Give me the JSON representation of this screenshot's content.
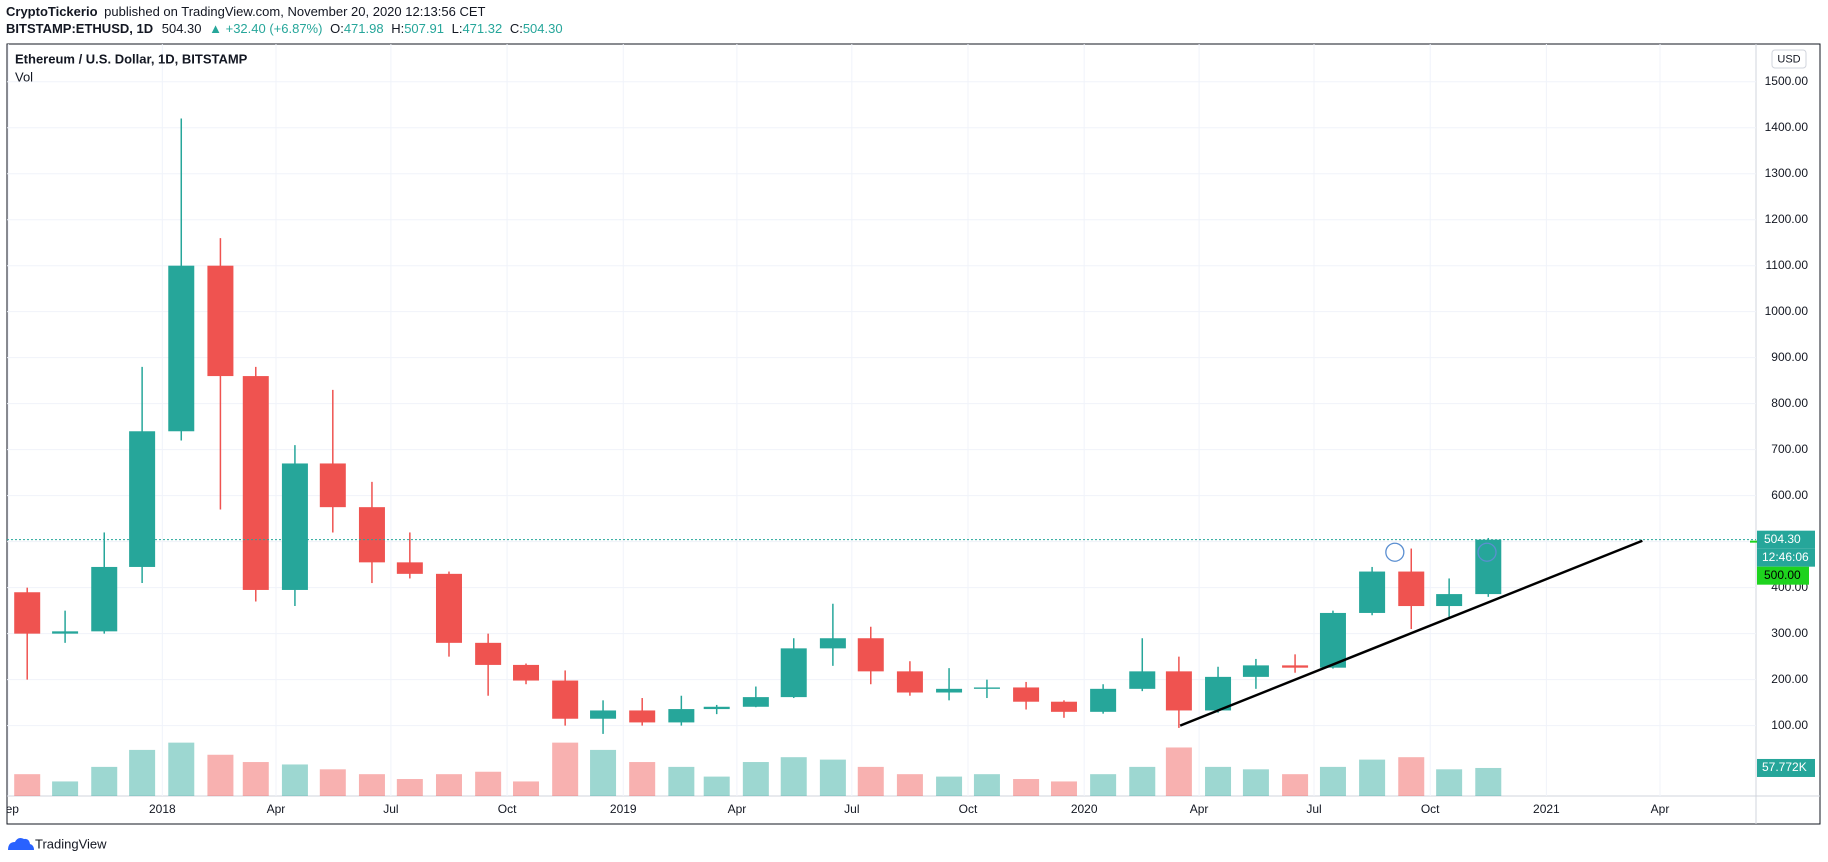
{
  "header": {
    "author": "CryptoTickerio",
    "published": "published on TradingView.com, November 20, 2020 12:13:56 CET",
    "symbol": "BITSTAMP:ETHUSD, 1D",
    "price": "504.30",
    "change": "▲ +32.40 (+6.87%)",
    "ohlc": [
      {
        "label": "O:",
        "value": "471.98"
      },
      {
        "label": "H:",
        "value": "507.91"
      },
      {
        "label": "L:",
        "value": "471.32"
      },
      {
        "label": "C:",
        "value": "504.30"
      }
    ]
  },
  "footer": {
    "logo": "TradingView"
  },
  "chart_data": {
    "type": "candlestick",
    "title": "Ethereum / U.S. Dollar, 1D, BITSTAMP",
    "volume_title": "Vol",
    "currency": "USD",
    "up_color": "#26a69a",
    "down_color": "#ef5350",
    "grid": true,
    "x": [
      "2017-09",
      "2017-10",
      "2017-11",
      "2017-12",
      "2018-01",
      "2018-02",
      "2018-03",
      "2018-04",
      "2018-05",
      "2018-06",
      "2018-07",
      "2018-08",
      "2018-09",
      "2018-10",
      "2018-11",
      "2018-12",
      "2019-01",
      "2019-02",
      "2019-03",
      "2019-04",
      "2019-05",
      "2019-06",
      "2019-07",
      "2019-08",
      "2019-09",
      "2019-10",
      "2019-11",
      "2019-12",
      "2020-01",
      "2020-02",
      "2020-03",
      "2020-04",
      "2020-05",
      "2020-06",
      "2020-07",
      "2020-08",
      "2020-09",
      "2020-10",
      "2020-11"
    ],
    "open": [
      390,
      300,
      305,
      445,
      740,
      1100,
      860,
      395,
      670,
      575,
      455,
      430,
      280,
      232,
      198,
      115,
      133,
      107,
      136,
      141,
      162,
      268,
      290,
      218,
      172,
      180,
      183,
      152,
      130,
      180,
      218,
      133,
      206,
      231,
      226,
      345,
      435,
      360,
      386
    ],
    "high": [
      400,
      350,
      520,
      880,
      1420,
      1160,
      880,
      710,
      830,
      630,
      520,
      435,
      300,
      235,
      220,
      155,
      160,
      165,
      145,
      185,
      290,
      365,
      315,
      240,
      225,
      200,
      195,
      155,
      190,
      290,
      250,
      228,
      245,
      255,
      350,
      445,
      485,
      420,
      508
    ],
    "low": [
      200,
      280,
      300,
      410,
      720,
      570,
      370,
      360,
      520,
      410,
      420,
      250,
      165,
      190,
      100,
      82,
      100,
      100,
      125,
      140,
      160,
      230,
      190,
      165,
      155,
      160,
      135,
      117,
      126,
      175,
      95,
      128,
      180,
      215,
      224,
      340,
      310,
      335,
      380
    ],
    "close": [
      300,
      305,
      445,
      740,
      1100,
      860,
      395,
      670,
      575,
      455,
      430,
      280,
      232,
      198,
      115,
      133,
      107,
      136,
      141,
      162,
      268,
      290,
      218,
      172,
      180,
      183,
      152,
      130,
      180,
      218,
      133,
      206,
      231,
      226,
      345,
      435,
      360,
      386,
      504.3
    ],
    "volume": [
      45000,
      30000,
      60000,
      95000,
      110000,
      85000,
      70000,
      65000,
      55000,
      45000,
      35000,
      45000,
      50000,
      30000,
      110000,
      95000,
      70000,
      60000,
      40000,
      70000,
      80000,
      75000,
      60000,
      45000,
      40000,
      45000,
      35000,
      30000,
      45000,
      60000,
      100000,
      60000,
      55000,
      45000,
      60000,
      75000,
      80000,
      55000,
      57772
    ],
    "volume_last_label": "57.772K",
    "xlim": [
      "2017-08-31",
      "2021-06-16"
    ],
    "xticks": [
      {
        "value": "2017-09-01",
        "label": "Sep"
      },
      {
        "value": "2018-01-01",
        "label": "2018"
      },
      {
        "value": "2018-04-01",
        "label": "Apr"
      },
      {
        "value": "2018-07-01",
        "label": "Jul"
      },
      {
        "value": "2018-10-01",
        "label": "Oct"
      },
      {
        "value": "2019-01-01",
        "label": "2019"
      },
      {
        "value": "2019-04-01",
        "label": "Apr"
      },
      {
        "value": "2019-07-01",
        "label": "Jul"
      },
      {
        "value": "2019-10-01",
        "label": "Oct"
      },
      {
        "value": "2020-01-01",
        "label": "2020"
      },
      {
        "value": "2020-04-01",
        "label": "Apr"
      },
      {
        "value": "2020-07-01",
        "label": "Jul"
      },
      {
        "value": "2020-10-01",
        "label": "Oct"
      },
      {
        "value": "2021-01-01",
        "label": "2021"
      },
      {
        "value": "2021-04-01",
        "label": "Apr"
      }
    ],
    "ylim": [
      -53,
      1582
    ],
    "yticks": [
      {
        "value": 100,
        "label": "100.00"
      },
      {
        "value": 200,
        "label": "200.00"
      },
      {
        "value": 300,
        "label": "300.00"
      },
      {
        "value": 400,
        "label": "400.00"
      },
      {
        "value": 500,
        "label": "500.00"
      },
      {
        "value": 600,
        "label": "600.00"
      },
      {
        "value": 700,
        "label": "700.00"
      },
      {
        "value": 800,
        "label": "800.00"
      },
      {
        "value": 900,
        "label": "900.00"
      },
      {
        "value": 1000,
        "label": "1000.00"
      },
      {
        "value": 1100,
        "label": "1100.00"
      },
      {
        "value": 1200,
        "label": "1200.00"
      },
      {
        "value": 1300,
        "label": "1300.00"
      },
      {
        "value": 1400,
        "label": "1400.00"
      },
      {
        "value": 1500,
        "label": "1500.00"
      }
    ],
    "y2lim": [
      0,
      1550000
    ],
    "last_price": {
      "value": 504.3,
      "label": "504.30"
    },
    "countdown": "12:46:06",
    "horizontal_line": {
      "value": 500,
      "label": "500.00",
      "color": "#1ed31e"
    },
    "trendline": {
      "x": [
        "2020-03-17",
        "2021-03-18"
      ],
      "values": [
        100,
        502
      ]
    },
    "circles": {
      "x": [
        "2020-09-03",
        "2020-11-15"
      ],
      "values": [
        477,
        477
      ],
      "color": "#5b8fd1"
    }
  }
}
